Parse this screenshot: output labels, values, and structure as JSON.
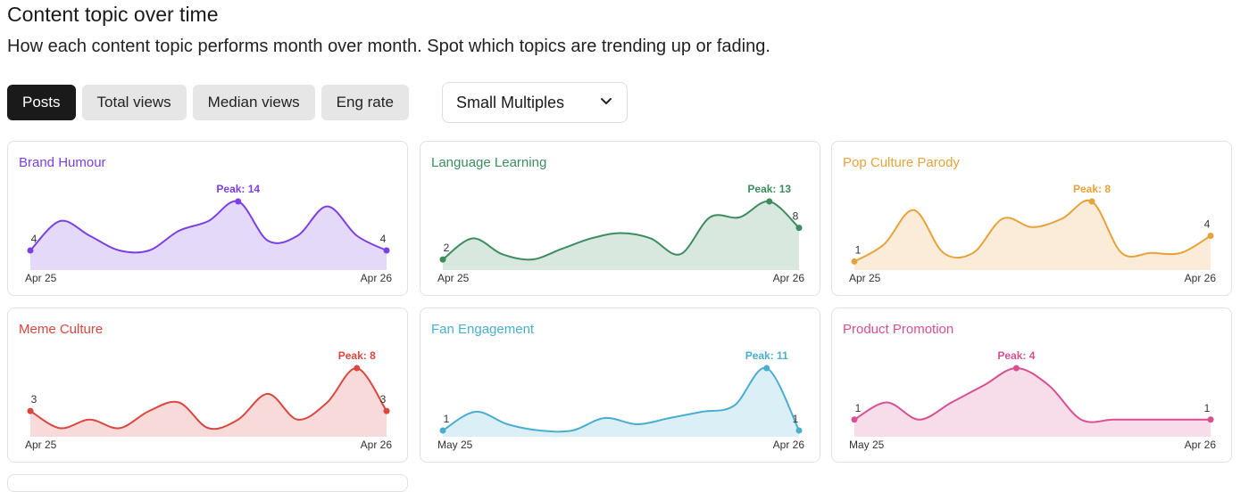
{
  "header": {
    "title": "Content topic over time",
    "subtitle": "How each content topic performs month over month. Spot which topics are trending up or fading."
  },
  "tabs": [
    "Posts",
    "Total views",
    "Median views",
    "Eng rate"
  ],
  "active_tab": 0,
  "dropdown": "Small Multiples",
  "chart_data": [
    {
      "type": "area",
      "title": "Brand Humour",
      "color": "#7b3fe4",
      "categories": [
        "Apr 25",
        null,
        null,
        null,
        null,
        null,
        null,
        null,
        null,
        null,
        null,
        null,
        "Apr 26"
      ],
      "values": [
        4,
        10,
        7,
        4,
        4,
        8,
        10,
        14,
        6,
        7,
        13,
        7,
        4
      ],
      "value_labels": [
        "4",
        null,
        null,
        null,
        null,
        null,
        null,
        "Peak: 14",
        null,
        null,
        null,
        null,
        "4"
      ]
    },
    {
      "type": "area",
      "title": "Language Learning",
      "color": "#3d8c5f",
      "categories": [
        "Apr 25",
        null,
        null,
        null,
        null,
        null,
        null,
        null,
        null,
        null,
        null,
        null,
        "Apr 26"
      ],
      "values": [
        2,
        6,
        3,
        2,
        4,
        6,
        7,
        6,
        3,
        10,
        10,
        13,
        8
      ],
      "value_labels": [
        "2",
        null,
        null,
        null,
        null,
        null,
        null,
        null,
        null,
        null,
        null,
        "Peak: 13",
        "8"
      ]
    },
    {
      "type": "area",
      "title": "Pop Culture Parody",
      "color": "#e8a23a",
      "categories": [
        "Apr 25",
        null,
        null,
        null,
        null,
        null,
        null,
        null,
        null,
        null,
        null,
        null,
        "Apr 26"
      ],
      "values": [
        1,
        3,
        7,
        2,
        2,
        6,
        5,
        6,
        8,
        2,
        2,
        2,
        4
      ],
      "value_labels": [
        "1",
        null,
        null,
        null,
        null,
        null,
        null,
        null,
        "Peak: 8",
        null,
        null,
        null,
        "4"
      ]
    },
    {
      "type": "area",
      "title": "Meme Culture",
      "color": "#d9473f",
      "categories": [
        "Apr 25",
        null,
        null,
        null,
        null,
        null,
        null,
        null,
        null,
        null,
        null,
        null,
        "Apr 26"
      ],
      "values": [
        3,
        1,
        2,
        1,
        3,
        4,
        1,
        2,
        5,
        2,
        4,
        8,
        3
      ],
      "value_labels": [
        "3",
        null,
        null,
        null,
        null,
        null,
        null,
        null,
        null,
        null,
        null,
        "Peak: 8",
        "3"
      ]
    },
    {
      "type": "area",
      "title": "Fan Engagement",
      "color": "#4aaed0",
      "categories": [
        "May 25",
        null,
        null,
        null,
        null,
        null,
        null,
        null,
        null,
        null,
        null,
        "Apr 26"
      ],
      "values": [
        1,
        4,
        2,
        1,
        1,
        3,
        2,
        3,
        4,
        5,
        11,
        1
      ],
      "value_labels": [
        "1",
        null,
        null,
        null,
        null,
        null,
        null,
        null,
        null,
        null,
        "Peak: 11",
        "1"
      ]
    },
    {
      "type": "area",
      "title": "Product Promotion",
      "color": "#d94f91",
      "categories": [
        "May 25",
        null,
        null,
        null,
        null,
        null,
        null,
        null,
        null,
        null,
        null,
        "Apr 26"
      ],
      "values": [
        1,
        2,
        1,
        2,
        3,
        4,
        3,
        1,
        1,
        1,
        1,
        1
      ],
      "value_labels": [
        "1",
        null,
        null,
        null,
        null,
        "Peak: 4",
        null,
        null,
        null,
        null,
        null,
        "1"
      ]
    }
  ]
}
